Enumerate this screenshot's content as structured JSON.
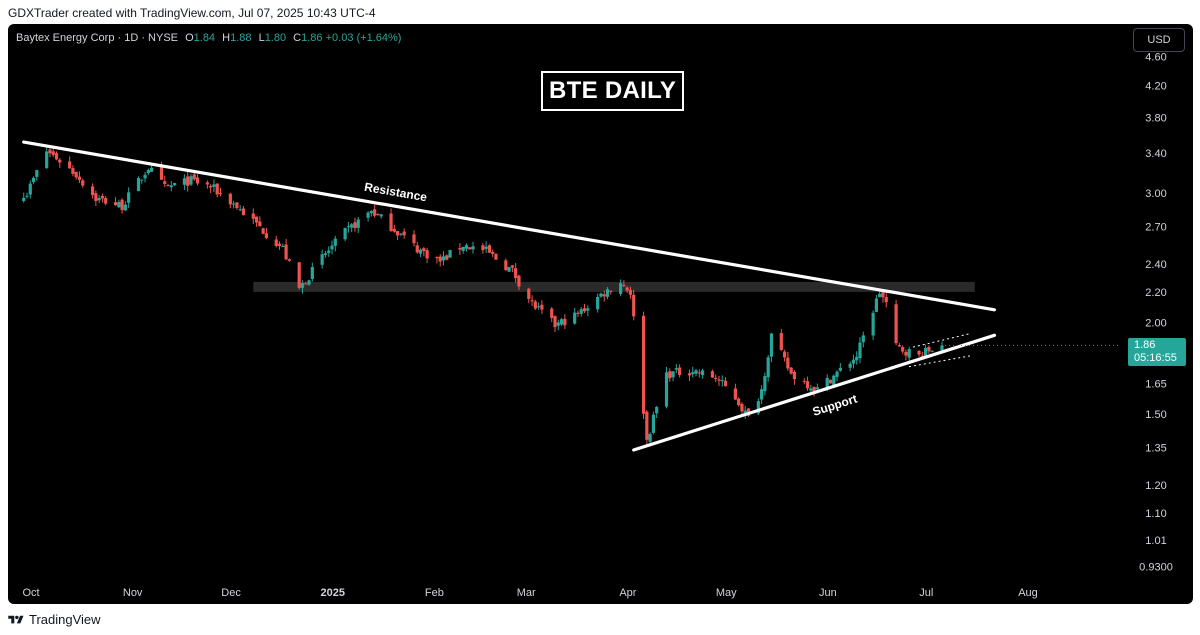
{
  "caption": "GDXTrader created with TradingView.com, Jul 07, 2025 10:43 UTC-4",
  "header": {
    "symbol": "Baytex Energy Corp · 1D · NYSE",
    "open_label": "O",
    "open": "1.84",
    "high_label": "H",
    "high": "1.88",
    "low_label": "L",
    "low": "1.80",
    "close_label": "C",
    "close": "1.86",
    "change": "+0.03 (+1.64%)"
  },
  "currency": "USD",
  "title_text": "BTE DAILY",
  "last_price": "1.86",
  "countdown": "05:16:55",
  "footer": {
    "brand": "TradingView"
  },
  "colors": {
    "up": "#26a69a",
    "down": "#ef5350",
    "background": "#000000",
    "trendline": "#ffffff",
    "zone": "#2a2a2a"
  },
  "chart_data": {
    "type": "candlestick",
    "scale": "log",
    "y_ticks": [
      "4.60",
      "4.20",
      "3.80",
      "3.40",
      "3.00",
      "2.70",
      "2.40",
      "2.20",
      "2.00",
      "1.65",
      "1.50",
      "1.35",
      "1.20",
      "1.10",
      "1.01",
      "0.9300"
    ],
    "x_ticks": [
      "Oct",
      "Nov",
      "Dec",
      "2025",
      "Feb",
      "Mar",
      "Apr",
      "May",
      "Jun",
      "Jul",
      "Aug"
    ],
    "close_path": [
      [
        "2024-10-01",
        3.0
      ],
      [
        "2024-10-07",
        3.42
      ],
      [
        "2024-10-10",
        3.35
      ],
      [
        "2024-10-16",
        3.18
      ],
      [
        "2024-10-22",
        2.95
      ],
      [
        "2024-10-30",
        2.88
      ],
      [
        "2024-11-07",
        3.25
      ],
      [
        "2024-11-12",
        3.05
      ],
      [
        "2024-11-20",
        3.12
      ],
      [
        "2024-11-26",
        3.06
      ],
      [
        "2024-12-03",
        2.9
      ],
      [
        "2024-12-10",
        2.72
      ],
      [
        "2024-12-18",
        2.52
      ],
      [
        "2024-12-23",
        2.22
      ],
      [
        "2024-12-30",
        2.45
      ],
      [
        "2025-01-06",
        2.65
      ],
      [
        "2025-01-14",
        2.84
      ],
      [
        "2025-01-21",
        2.68
      ],
      [
        "2025-01-28",
        2.52
      ],
      [
        "2025-02-04",
        2.42
      ],
      [
        "2025-02-11",
        2.55
      ],
      [
        "2025-02-18",
        2.5
      ],
      [
        "2025-02-26",
        2.35
      ],
      [
        "2025-03-04",
        2.12
      ],
      [
        "2025-03-11",
        1.98
      ],
      [
        "2025-03-18",
        2.05
      ],
      [
        "2025-03-25",
        2.18
      ],
      [
        "2025-03-31",
        2.27
      ],
      [
        "2025-04-03",
        2.2
      ],
      [
        "2025-04-04",
        2.02
      ],
      [
        "2025-04-08",
        1.38
      ],
      [
        "2025-04-14",
        1.7
      ],
      [
        "2025-04-22",
        1.72
      ],
      [
        "2025-04-29",
        1.68
      ],
      [
        "2025-05-05",
        1.58
      ],
      [
        "2025-05-09",
        1.48
      ],
      [
        "2025-05-13",
        1.62
      ],
      [
        "2025-05-16",
        1.92
      ],
      [
        "2025-05-22",
        1.7
      ],
      [
        "2025-05-30",
        1.62
      ],
      [
        "2025-06-06",
        1.72
      ],
      [
        "2025-06-11",
        1.8
      ],
      [
        "2025-06-16",
        2.08
      ],
      [
        "2025-06-18",
        2.2
      ],
      [
        "2025-06-20",
        2.12
      ],
      [
        "2025-06-23",
        1.85
      ],
      [
        "2025-06-30",
        1.8
      ],
      [
        "2025-07-03",
        1.83
      ],
      [
        "2025-07-07",
        1.86
      ]
    ],
    "last_close": 1.86,
    "annotations": [
      {
        "label": "Resistance",
        "from": [
          "2024-09-30",
          3.52
        ],
        "to": [
          "2025-07-23",
          2.08
        ]
      },
      {
        "label": "Support",
        "from": [
          "2025-04-04",
          1.34
        ],
        "to": [
          "2025-07-23",
          1.92
        ]
      }
    ],
    "zone": {
      "from": "2024-12-09",
      "to": "2025-07-17",
      "low": 2.2,
      "high": 2.27
    }
  }
}
